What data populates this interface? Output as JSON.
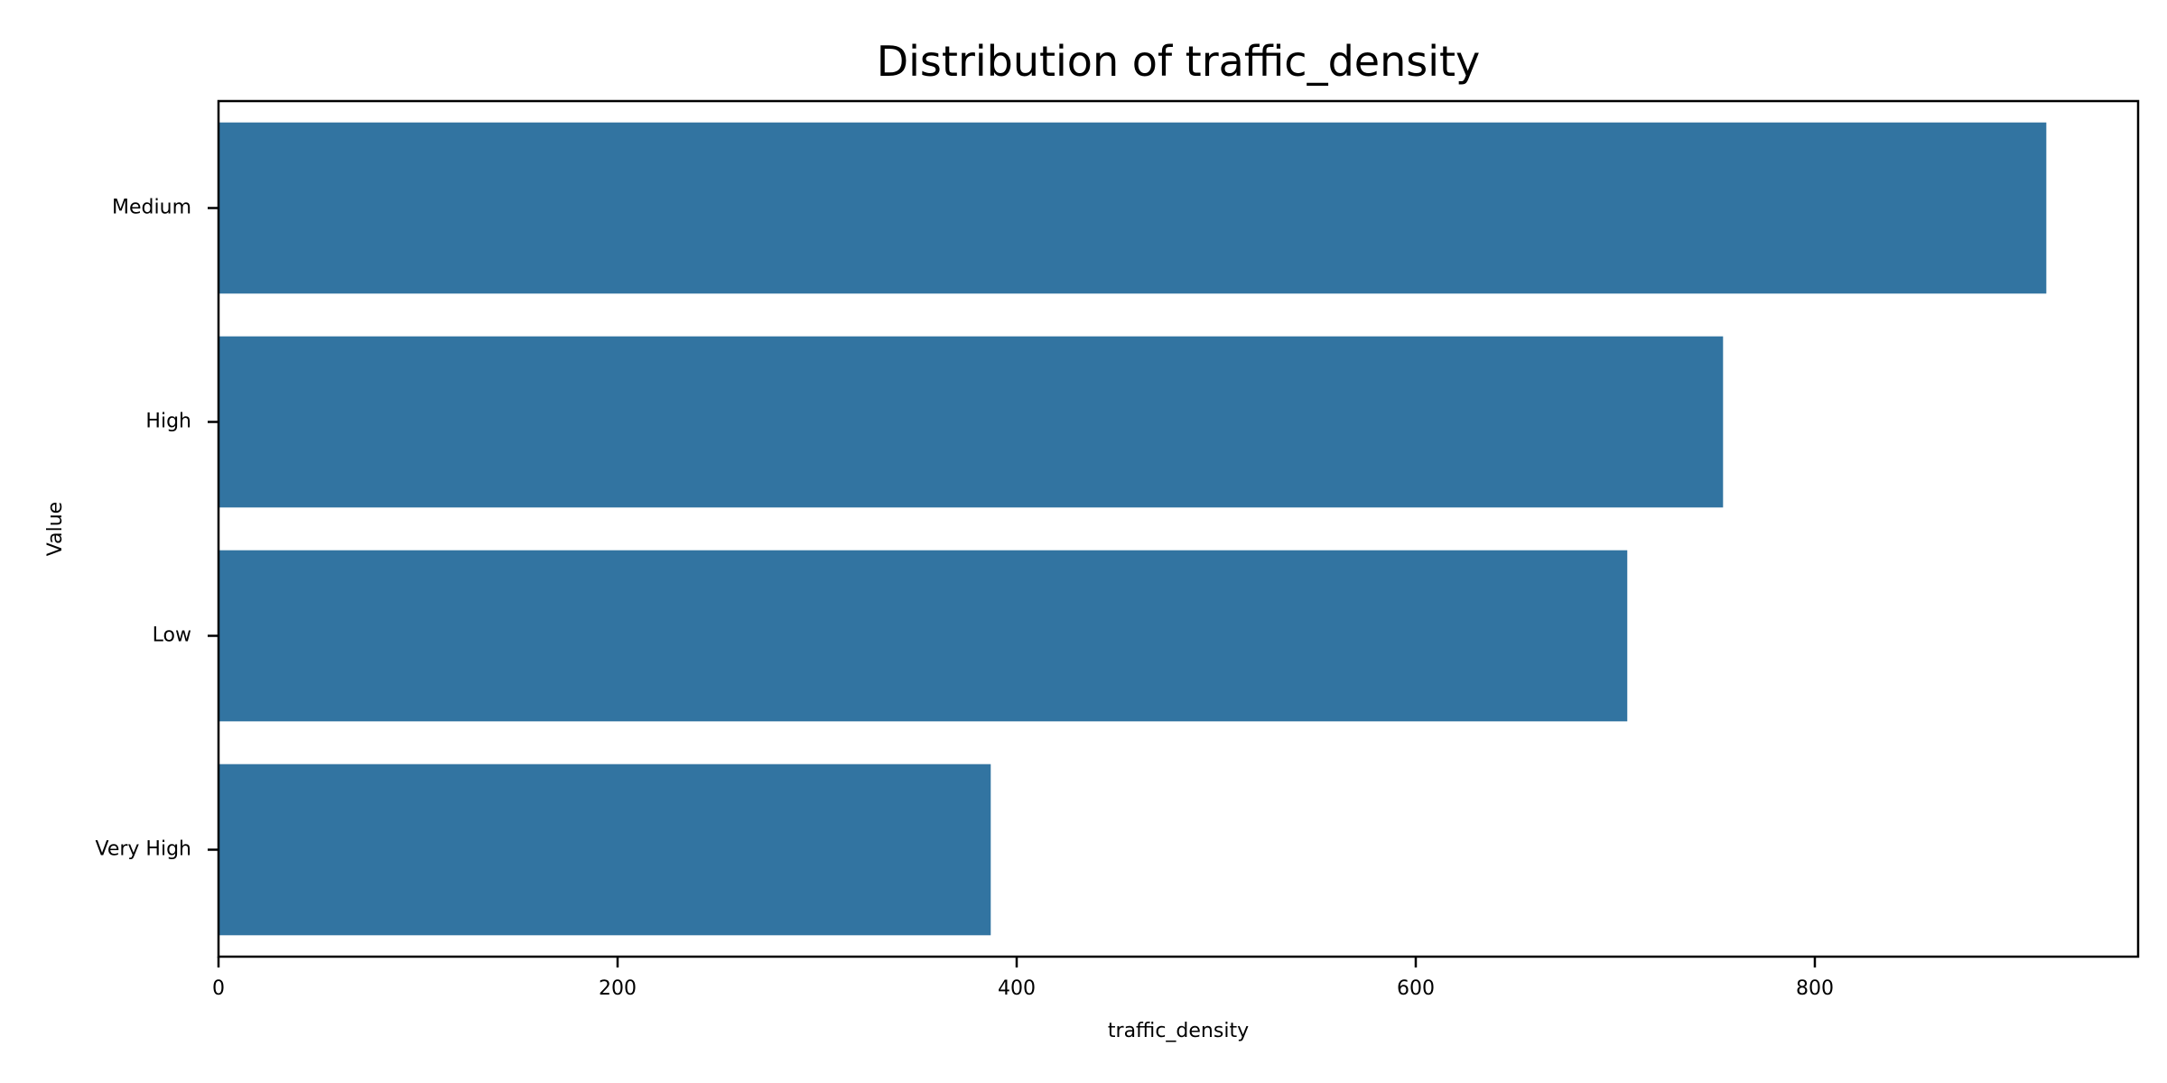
{
  "chart_data": {
    "type": "bar",
    "orientation": "horizontal",
    "title": "Distribution of traffic_density",
    "xlabel": "traffic_density",
    "ylabel": "Value",
    "categories": [
      "Medium",
      "High",
      "Low",
      "Very High"
    ],
    "values": [
      916,
      754,
      706,
      387
    ],
    "xlim": [
      0,
      962
    ],
    "xticks": [
      0,
      200,
      400,
      600,
      800
    ],
    "bar_color": "#3274a1",
    "grid": false,
    "legend": "none"
  }
}
